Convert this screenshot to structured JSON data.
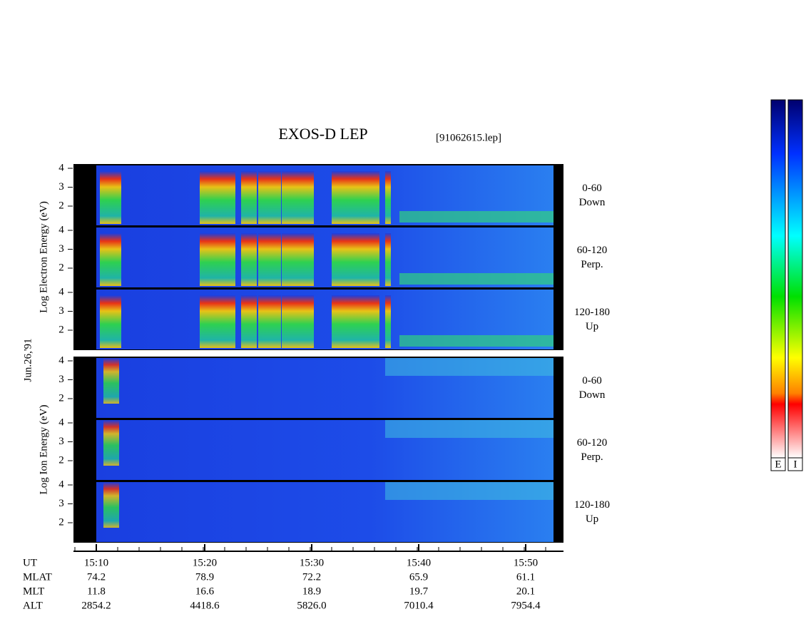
{
  "title": "EXOS-D LEP",
  "file": "[91062615.lep]",
  "date": "Jun.26,'91",
  "panels": [
    {
      "label": "Log Electron Energy (eV)",
      "yticks": [
        "4",
        "3",
        "2"
      ],
      "subpanels": [
        {
          "range": "0-60",
          "direction": "Down"
        },
        {
          "range": "60-120",
          "direction": "Perp."
        },
        {
          "range": "120-180",
          "direction": "Up"
        }
      ]
    },
    {
      "label": "Log Ion Energy (eV)",
      "yticks": [
        "4",
        "3",
        "2"
      ],
      "subpanels": [
        {
          "range": "0-60",
          "direction": "Down"
        },
        {
          "range": "60-120",
          "direction": "Perp."
        },
        {
          "range": "120-180",
          "direction": "Up"
        }
      ]
    }
  ],
  "time_axis": {
    "name": "UT",
    "ticks": [
      "15:10",
      "15:20",
      "15:30",
      "15:40",
      "15:50"
    ]
  },
  "ephemeris": [
    {
      "name": "MLAT",
      "values": [
        "74.2",
        "78.9",
        "72.2",
        "65.9",
        "61.1"
      ]
    },
    {
      "name": "MLT",
      "values": [
        "11.8",
        "16.6",
        "18.9",
        "19.7",
        "20.1"
      ]
    },
    {
      "name": "ALT",
      "values": [
        "2854.2",
        "4418.6",
        "5826.0",
        "7010.4",
        "7954.4"
      ]
    }
  ],
  "colorbars": [
    "E",
    "I"
  ]
}
